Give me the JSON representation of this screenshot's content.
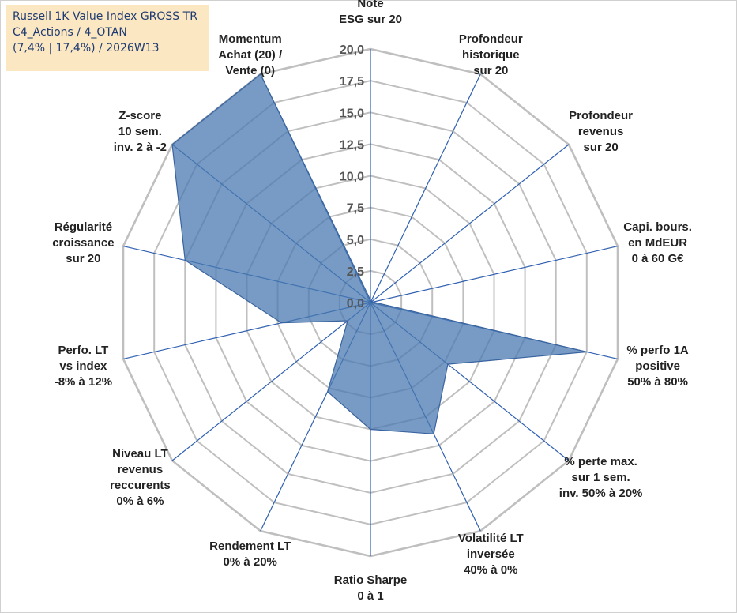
{
  "info_box": {
    "line1": "Russell 1K Value Index GROSS TR",
    "line2": "C4_Actions / 4_OTAN",
    "line3": "(7,4% | 17,4%) / 2026W13"
  },
  "colors": {
    "fill": "#4a79b0",
    "stroke": "#3a64a0",
    "spoke": "#2e5fb0",
    "grid": "#bfbfbf",
    "text": "#222222",
    "tick_text": "#555555",
    "info_bg": "#fbe7c2",
    "info_text": "#1f3b73"
  },
  "chart_data": {
    "type": "radar",
    "title": "",
    "rmin": 0,
    "rmax": 20,
    "tick_step": 2.5,
    "tick_labels": [
      "0,0",
      "2,5",
      "5,0",
      "7,5",
      "10,0",
      "12,5",
      "15,0",
      "17,5",
      "20,0"
    ],
    "axes": [
      {
        "label": [
          "Note",
          "ESG sur 20"
        ],
        "value": 0.2
      },
      {
        "label": [
          "Profondeur",
          "historique",
          "sur 20"
        ],
        "value": 0.1
      },
      {
        "label": [
          "Profondeur",
          "revenus",
          "sur 20"
        ],
        "value": 0.1
      },
      {
        "label": [
          "Capi. bours.",
          "en MdEUR",
          "0 à 60 G€"
        ],
        "value": 0.2
      },
      {
        "label": [
          "% perfo 1A",
          "positive",
          "50% à 80%"
        ],
        "value": 17.5
      },
      {
        "label": [
          "% perte max.",
          "sur 1 sem.",
          "inv. 50% à 20%"
        ],
        "value": 7.8
      },
      {
        "label": [
          "Volatilité LT",
          "inversée",
          "40% à 0%"
        ],
        "value": 11.5
      },
      {
        "label": [
          "Ratio Sharpe",
          "0 à 1"
        ],
        "value": 10.0
      },
      {
        "label": [
          "Rendement LT",
          "0% à 20%"
        ],
        "value": 7.8
      },
      {
        "label": [
          "Niveau LT",
          "revenus",
          "reccurents",
          "0% à 6%"
        ],
        "value": 2.3
      },
      {
        "label": [
          "Perfo. LT",
          "vs index",
          "-8% à 12%"
        ],
        "value": 7.2
      },
      {
        "label": [
          "Régularité",
          "croissance",
          "sur 20"
        ],
        "value": 15.0
      },
      {
        "label": [
          "Z-score",
          "10 sem.",
          "inv. 2 à -2"
        ],
        "value": 20.0
      },
      {
        "label": [
          "Momentum",
          "Achat (20) /",
          "Vente (0)"
        ],
        "value": 20.0
      }
    ]
  }
}
